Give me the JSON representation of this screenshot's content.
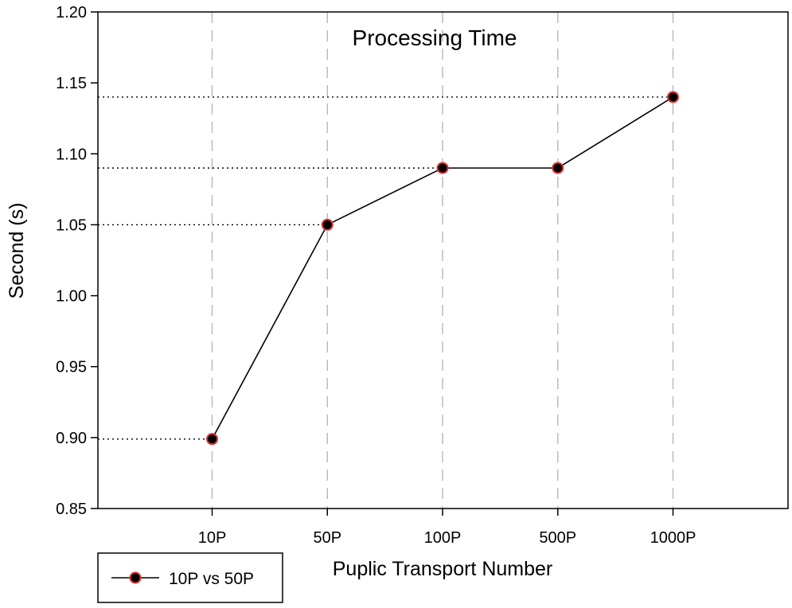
{
  "chart_data": {
    "type": "line",
    "title": "Processing Time",
    "xlabel": "Puplic Transport Number",
    "ylabel": "Second (s)",
    "categories": [
      "10P",
      "50P",
      "100P",
      "500P",
      "1000P"
    ],
    "series": [
      {
        "name": "10P vs 50P",
        "values": [
          0.899,
          1.05,
          1.09,
          1.09,
          1.14
        ]
      }
    ],
    "ylim": [
      0.85,
      1.2
    ],
    "yticks": [
      "0.85",
      "0.90",
      "0.95",
      "1.00",
      "1.05",
      "1.10",
      "1.15",
      "1.20"
    ],
    "reference_lines": [
      0.899,
      1.05,
      1.09,
      1.14
    ],
    "grid": "vertical dashed",
    "legend_position": "bottom-left",
    "colors": {
      "line": "#000000",
      "marker_fill": "#000000",
      "marker_edge": "#e03030",
      "grid": "#bbbbbb"
    }
  }
}
